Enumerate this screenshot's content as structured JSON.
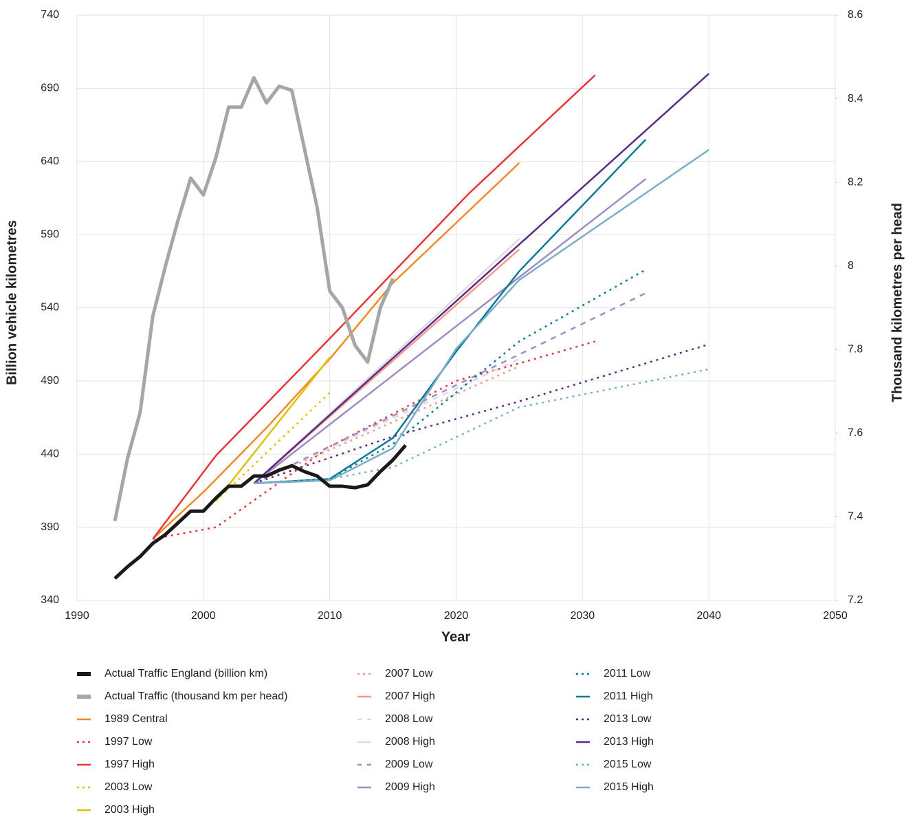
{
  "chart_data": {
    "type": "line",
    "x_label": "Year",
    "y_label": "Billion vehicle kilometres",
    "y2_label": "Thousand kilometres per head",
    "xlim": [
      1990,
      2050
    ],
    "xticks": [
      1990,
      2000,
      2010,
      2020,
      2030,
      2040,
      2050
    ],
    "ylim": [
      340,
      740
    ],
    "yticks": [
      340,
      390,
      440,
      490,
      540,
      590,
      640,
      690,
      740
    ],
    "y2lim": [
      7.2,
      8.6
    ],
    "y2ticks": [
      7.2,
      7.4,
      7.6,
      7.8,
      8.0,
      8.2,
      8.4,
      8.6
    ],
    "grid": true,
    "legend": "bottom",
    "series": [
      {
        "name": "Actual Traffic England (billion km)",
        "color": "#1a1a1a",
        "style": "solid",
        "width": 5,
        "x": [
          1993,
          1994,
          1995,
          1996,
          1997,
          1998,
          1999,
          2000,
          2001,
          2002,
          2003,
          2004,
          2005,
          2006,
          2007,
          2008,
          2009,
          2010,
          2011,
          2012,
          2013,
          2014,
          2015,
          2016
        ],
        "values": [
          355,
          363,
          370,
          379,
          385,
          393,
          401,
          401,
          410,
          418,
          418,
          425,
          425,
          429,
          432,
          428,
          425,
          418,
          418,
          417,
          419,
          428,
          436,
          446
        ]
      },
      {
        "name": "Actual Traffic (thousand km per head)",
        "color": "#a6a6a6",
        "style": "solid",
        "width": 5,
        "axis": "y2",
        "x": [
          1993,
          1994,
          1995,
          1996,
          1997,
          1998,
          1999,
          2000,
          2001,
          2002,
          2003,
          2004,
          2005,
          2006,
          2007,
          2008,
          2009,
          2010,
          2011,
          2012,
          2013,
          2014,
          2015
        ],
        "values": [
          7.39,
          7.54,
          7.65,
          7.88,
          8.0,
          8.11,
          8.21,
          8.17,
          8.26,
          8.38,
          8.38,
          8.45,
          8.39,
          8.43,
          8.42,
          8.28,
          8.14,
          7.94,
          7.9,
          7.81,
          7.77,
          7.9,
          7.97
        ]
      },
      {
        "name": "1989 Central",
        "color": "#f08a24",
        "style": "solid",
        "width": 2.5,
        "x": [
          1996,
          2000,
          2005,
          2010,
          2015,
          2020,
          2025
        ],
        "values": [
          382,
          414,
          458,
          505,
          557,
          598,
          639
        ]
      },
      {
        "name": "1997 Low",
        "color": "#e8333a",
        "style": "dotted",
        "width": 2.5,
        "x": [
          1996,
          2001,
          2010,
          2020,
          2025,
          2031
        ],
        "values": [
          382,
          390,
          445,
          490,
          502,
          517
        ]
      },
      {
        "name": "1997 High",
        "color": "#e8333a",
        "style": "solid",
        "width": 2.5,
        "x": [
          1996,
          2001,
          2010,
          2021,
          2031
        ],
        "values": [
          382,
          439,
          519,
          618,
          699
        ]
      },
      {
        "name": "2003 Low",
        "color": "#e0c000",
        "style": "dotted",
        "width": 2.5,
        "x": [
          2001,
          2010
        ],
        "values": [
          408,
          482
        ]
      },
      {
        "name": "2003 High",
        "color": "#e0c000",
        "style": "solid",
        "width": 2.5,
        "x": [
          2001,
          2010
        ],
        "values": [
          408,
          506
        ]
      },
      {
        "name": "2007 Low",
        "color": "#f4998b",
        "style": "dotted",
        "width": 2.5,
        "x": [
          2004,
          2025
        ],
        "values": [
          420,
          500
        ]
      },
      {
        "name": "2007 High",
        "color": "#f4998b",
        "style": "solid",
        "width": 2.5,
        "x": [
          2004,
          2025
        ],
        "values": [
          420,
          580
        ]
      },
      {
        "name": "2008 Low",
        "color": "#dcd9e3",
        "style": "dashed",
        "width": 2.5,
        "x": [
          2004,
          2025
        ],
        "values": [
          420,
          505
        ]
      },
      {
        "name": "2008 High",
        "color": "#dcd9e3",
        "style": "solid",
        "width": 2.5,
        "x": [
          2004,
          2025
        ],
        "values": [
          420,
          587
        ]
      },
      {
        "name": "2009 Low",
        "color": "#a18bc4",
        "style": "dashed",
        "width": 2.5,
        "x": [
          2004,
          2035
        ],
        "values": [
          420,
          550
        ]
      },
      {
        "name": "2009 High",
        "color": "#a18bc4",
        "style": "solid",
        "width": 2.5,
        "x": [
          2004,
          2035
        ],
        "values": [
          420,
          628
        ]
      },
      {
        "name": "2011 Low",
        "color": "#0a7a96",
        "style": "dotted",
        "width": 2.5,
        "x": [
          2004,
          2010,
          2015,
          2025,
          2035
        ],
        "values": [
          420,
          423,
          447,
          517,
          566
        ]
      },
      {
        "name": "2011 High",
        "color": "#0a7a96",
        "style": "solid",
        "width": 2.5,
        "x": [
          2004,
          2010,
          2015,
          2020,
          2025,
          2035
        ],
        "values": [
          420,
          423,
          451,
          510,
          565,
          655
        ]
      },
      {
        "name": "2013 Low",
        "color": "#5b2a86",
        "style": "dotted",
        "width": 2.5,
        "x": [
          2004,
          2015,
          2025,
          2040
        ],
        "values": [
          420,
          452,
          476,
          515
        ]
      },
      {
        "name": "2013 High",
        "color": "#5b2a86",
        "style": "solid",
        "width": 2.5,
        "x": [
          2004,
          2040
        ],
        "values": [
          420,
          700
        ]
      },
      {
        "name": "2015 Low",
        "color": "#7aaec8",
        "style": "dotted",
        "width": 2.5,
        "x": [
          2004,
          2010,
          2015,
          2025,
          2040
        ],
        "values": [
          420,
          423,
          431,
          472,
          498
        ]
      },
      {
        "name": "2015 High",
        "color": "#7aaec8",
        "style": "solid",
        "width": 2.5,
        "x": [
          2004,
          2010,
          2015,
          2020,
          2025,
          2040
        ],
        "values": [
          420,
          422,
          444,
          512,
          559,
          648
        ]
      }
    ]
  }
}
